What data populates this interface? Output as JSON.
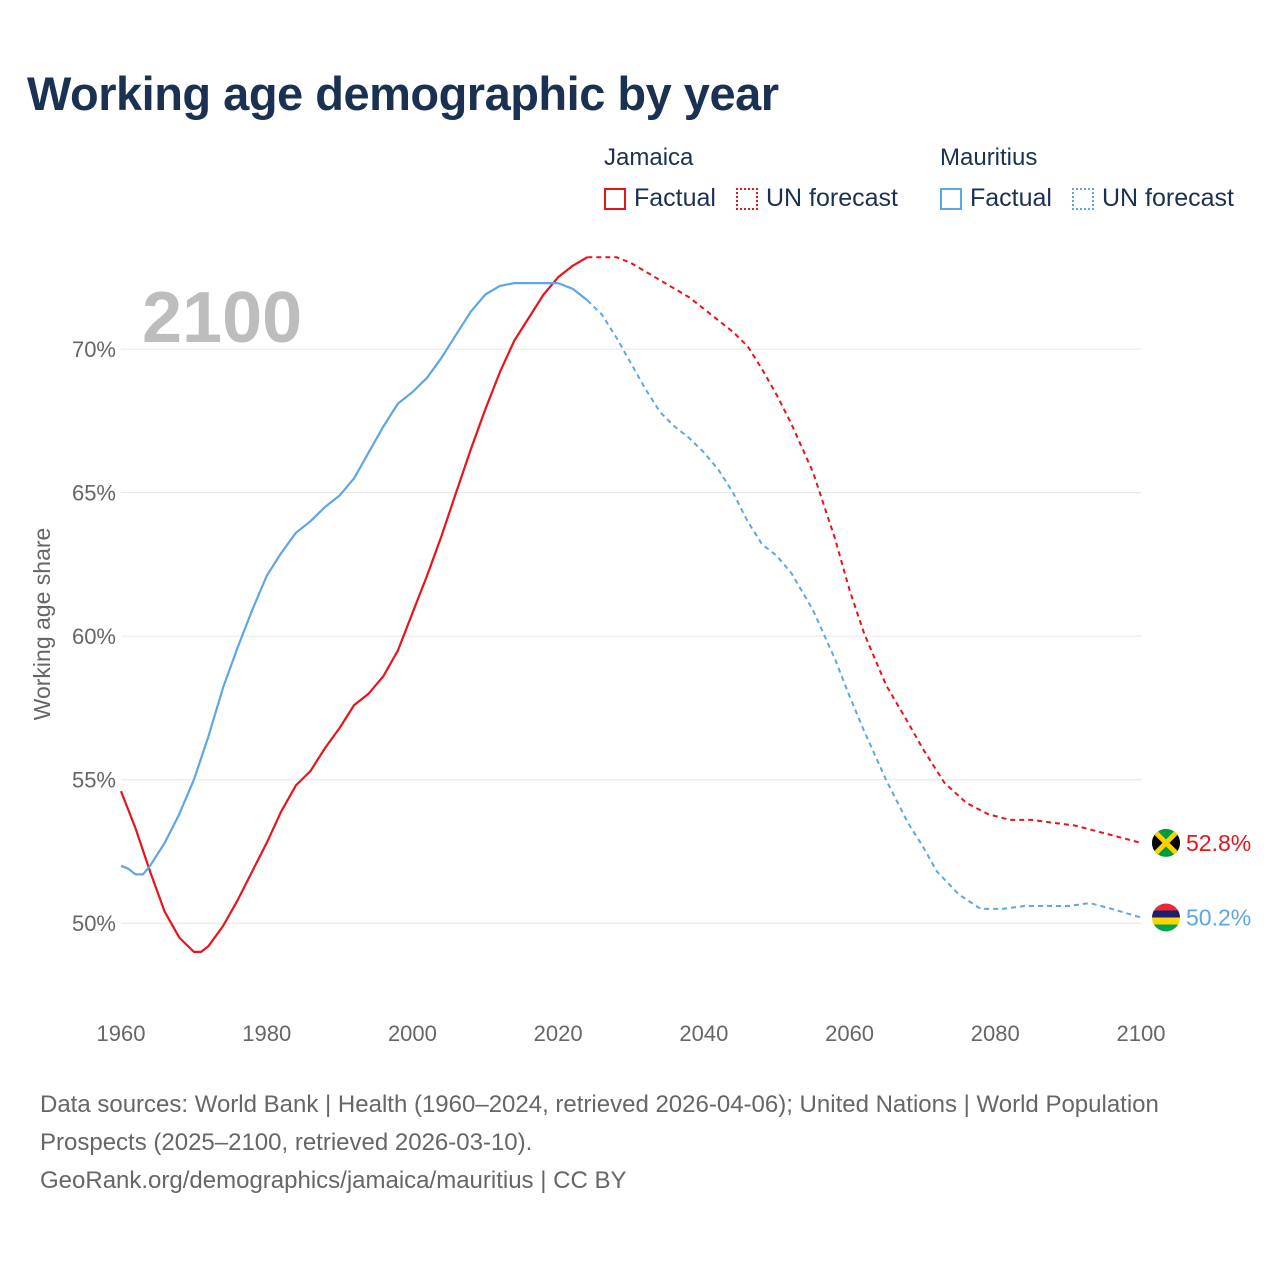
{
  "title": "Working age demographic by year",
  "legend": {
    "jamaica": {
      "name": "Jamaica",
      "factual": "Factual",
      "forecast": "UN forecast",
      "color": "#e8141c"
    },
    "mauritius": {
      "name": "Mauritius",
      "factual": "Factual",
      "forecast": "UN forecast",
      "color": "#5ea6e4"
    }
  },
  "footer": {
    "sources": "Data sources: World Bank | Health (1960–2024, retrieved 2026-04-06); United Nations | World Population Prospects (2025–2100, retrieved 2026-03-10).",
    "credit": "GeoRank.org/demographics/jamaica/mauritius | CC BY"
  },
  "chart_data": {
    "type": "line",
    "title": "Working age demographic by year",
    "year_label": "2100",
    "xlabel": "",
    "ylabel": "Working age share",
    "xlim": [
      1960,
      2100
    ],
    "ylim": [
      47.5,
      73.8
    ],
    "x_ticks": [
      1960,
      1980,
      2000,
      2020,
      2040,
      2060,
      2080,
      2100
    ],
    "x_tick_labels": [
      "1960",
      "1980",
      "2000",
      "2020",
      "2040",
      "2060",
      "2080",
      "2100"
    ],
    "y_ticks": [
      50,
      55,
      60,
      65,
      70
    ],
    "y_tick_labels": [
      "50%",
      "55%",
      "60%",
      "65%",
      "70%"
    ],
    "grid": true,
    "series": [
      {
        "name": "Jamaica",
        "color": "#e8141c",
        "end_value_label": "52.8%",
        "factual": {
          "x": [
            1960,
            1962,
            1964,
            1966,
            1968,
            1970,
            1971,
            1972,
            1974,
            1976,
            1978,
            1980,
            1982,
            1984,
            1986,
            1988,
            1990,
            1992,
            1994,
            1996,
            1998,
            2000,
            2002,
            2004,
            2006,
            2008,
            2010,
            2012,
            2014,
            2016,
            2018,
            2020,
            2022,
            2024
          ],
          "y": [
            54.6,
            53.3,
            51.8,
            50.4,
            49.5,
            49.0,
            49.0,
            49.2,
            49.9,
            50.8,
            51.8,
            52.8,
            53.9,
            54.8,
            55.3,
            56.1,
            56.8,
            57.6,
            58.0,
            58.6,
            59.5,
            60.8,
            62.1,
            63.5,
            65.0,
            66.5,
            67.9,
            69.2,
            70.3,
            71.1,
            71.9,
            72.5,
            72.9,
            73.2
          ]
        },
        "forecast": {
          "x": [
            2024,
            2026,
            2028,
            2030,
            2032,
            2034,
            2036,
            2038,
            2040,
            2042,
            2044,
            2046,
            2048,
            2050,
            2052,
            2055,
            2058,
            2060,
            2062,
            2065,
            2068,
            2070,
            2073,
            2076,
            2079,
            2082,
            2085,
            2088,
            2091,
            2094,
            2097,
            2100
          ],
          "y": [
            73.2,
            73.2,
            73.2,
            73.0,
            72.7,
            72.4,
            72.1,
            71.8,
            71.4,
            71.0,
            70.6,
            70.1,
            69.3,
            68.4,
            67.4,
            65.7,
            63.4,
            61.6,
            60.1,
            58.3,
            57.0,
            56.1,
            54.9,
            54.2,
            53.8,
            53.6,
            53.6,
            53.5,
            53.4,
            53.2,
            53.0,
            52.8
          ]
        }
      },
      {
        "name": "Mauritius",
        "color": "#5ea6e4",
        "end_value_label": "50.2%",
        "factual": {
          "x": [
            1960,
            1961,
            1962,
            1963,
            1964,
            1966,
            1968,
            1970,
            1972,
            1974,
            1976,
            1978,
            1980,
            1982,
            1984,
            1986,
            1988,
            1990,
            1992,
            1994,
            1996,
            1998,
            2000,
            2002,
            2004,
            2006,
            2008,
            2010,
            2012,
            2014,
            2016,
            2018,
            2020,
            2022,
            2024
          ],
          "y": [
            52.0,
            51.9,
            51.7,
            51.7,
            52.0,
            52.8,
            53.8,
            55.0,
            56.5,
            58.2,
            59.6,
            60.9,
            62.1,
            62.9,
            63.6,
            64.0,
            64.5,
            64.9,
            65.5,
            66.4,
            67.3,
            68.1,
            68.5,
            69.0,
            69.7,
            70.5,
            71.3,
            71.9,
            72.2,
            72.3,
            72.3,
            72.3,
            72.3,
            72.1,
            71.7
          ]
        },
        "forecast": {
          "x": [
            2024,
            2026,
            2028,
            2030,
            2032,
            2034,
            2036,
            2038,
            2040,
            2042,
            2044,
            2046,
            2048,
            2050,
            2052,
            2055,
            2058,
            2060,
            2062,
            2065,
            2068,
            2070,
            2072,
            2075,
            2078,
            2081,
            2084,
            2087,
            2090,
            2093,
            2096,
            2100
          ],
          "y": [
            71.7,
            71.2,
            70.4,
            69.5,
            68.6,
            67.8,
            67.3,
            66.9,
            66.4,
            65.8,
            65.0,
            64.0,
            63.2,
            62.8,
            62.2,
            60.9,
            59.2,
            57.9,
            56.7,
            55.0,
            53.5,
            52.7,
            51.8,
            51.0,
            50.5,
            50.5,
            50.6,
            50.6,
            50.6,
            50.7,
            50.5,
            50.2
          ]
        }
      }
    ]
  }
}
